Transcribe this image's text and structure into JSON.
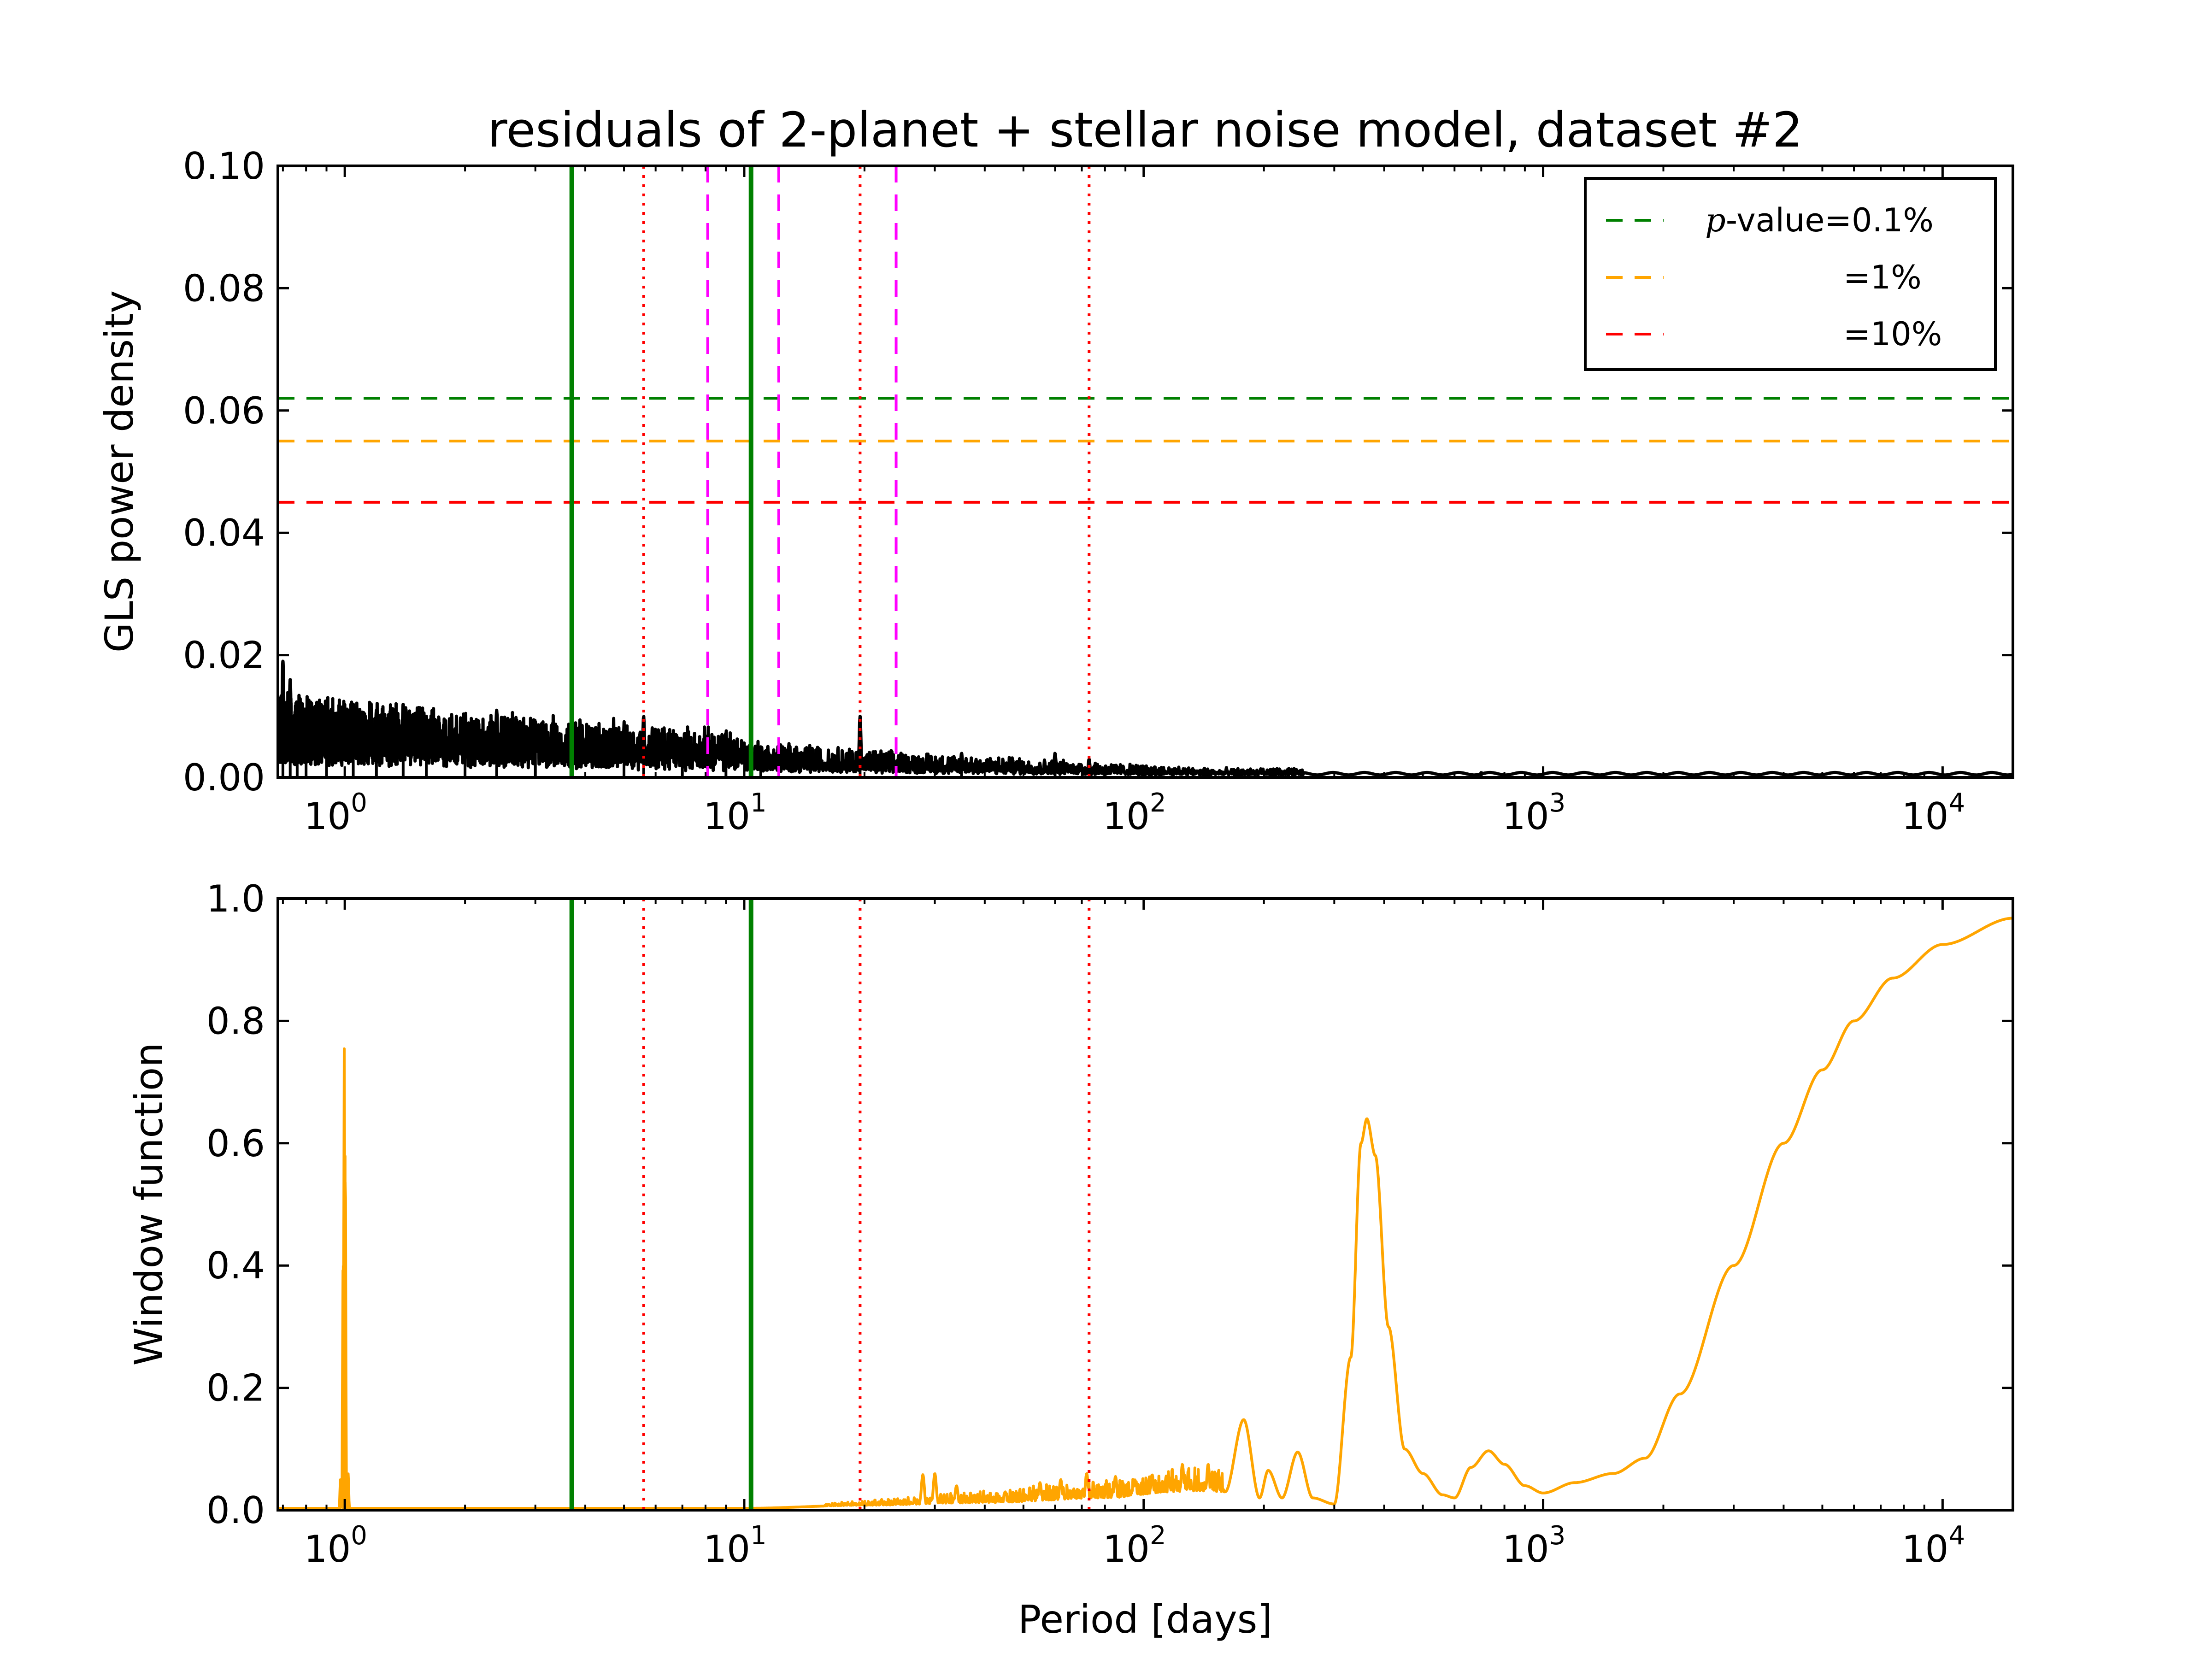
{
  "chart_data": [
    {
      "type": "line",
      "title": "residuals of 2-planet + stellar noise model, dataset #2",
      "xlabel": "",
      "ylabel": "GLS power density",
      "xscale": "log",
      "xlim": [
        0.68,
        15000
      ],
      "ylim": [
        0,
        0.1
      ],
      "yticks": [
        0.0,
        0.02,
        0.04,
        0.06,
        0.08,
        0.1
      ],
      "ytick_labels": [
        "0.00",
        "0.02",
        "0.04",
        "0.06",
        "0.08",
        "0.10"
      ],
      "xticks": [
        1,
        10,
        100,
        1000,
        10000
      ],
      "xtick_labels": [
        {
          "base": "10",
          "exp": "0"
        },
        {
          "base": "10",
          "exp": "1"
        },
        {
          "base": "10",
          "exp": "2"
        },
        {
          "base": "10",
          "exp": "3"
        },
        {
          "base": "10",
          "exp": "4"
        }
      ],
      "series_color": "#000000",
      "hlines": [
        {
          "y": 0.062,
          "color": "#008000",
          "style": "dashed"
        },
        {
          "y": 0.055,
          "color": "#ffa500",
          "style": "dashed"
        },
        {
          "y": 0.045,
          "color": "#ff0000",
          "style": "dashed"
        }
      ],
      "vlines": [
        {
          "x": 3.7,
          "color": "#008000",
          "style": "solid"
        },
        {
          "x": 10.4,
          "color": "#008000",
          "style": "solid"
        },
        {
          "x": 5.6,
          "color": "#ff0000",
          "style": "dotted"
        },
        {
          "x": 19.5,
          "color": "#ff0000",
          "style": "dotted"
        },
        {
          "x": 73,
          "color": "#ff0000",
          "style": "dotted"
        },
        {
          "x": 8.1,
          "color": "#ff00ff",
          "style": "dashed"
        },
        {
          "x": 12.2,
          "color": "#ff00ff",
          "style": "dashed"
        },
        {
          "x": 24,
          "color": "#ff00ff",
          "style": "dashed"
        }
      ],
      "peaks": [
        {
          "x": 0.7,
          "y": 0.019
        },
        {
          "x": 0.73,
          "y": 0.016
        },
        {
          "x": 0.76,
          "y": 0.012
        },
        {
          "x": 0.8,
          "y": 0.011
        },
        {
          "x": 0.9,
          "y": 0.01
        },
        {
          "x": 1.05,
          "y": 0.012
        },
        {
          "x": 1.2,
          "y": 0.011
        },
        {
          "x": 1.4,
          "y": 0.012
        },
        {
          "x": 1.6,
          "y": 0.01
        },
        {
          "x": 2.0,
          "y": 0.01
        },
        {
          "x": 2.4,
          "y": 0.011
        },
        {
          "x": 3.0,
          "y": 0.008
        },
        {
          "x": 5.0,
          "y": 0.008
        },
        {
          "x": 5.6,
          "y": 0.01
        },
        {
          "x": 7.0,
          "y": 0.006
        },
        {
          "x": 9.0,
          "y": 0.006
        },
        {
          "x": 11,
          "y": 0.005
        },
        {
          "x": 19.5,
          "y": 0.01
        },
        {
          "x": 35,
          "y": 0.004
        },
        {
          "x": 60,
          "y": 0.004
        },
        {
          "x": 73,
          "y": 0.003
        },
        {
          "x": 700,
          "y": 0.0008
        }
      ],
      "legend": {
        "position": "upper-right",
        "entries": [
          {
            "label_math": "p",
            "label": "-value=0.1%",
            "color": "#008000"
          },
          {
            "label": "=1%",
            "color": "#ffa500"
          },
          {
            "label": "=10%",
            "color": "#ff0000"
          }
        ]
      }
    },
    {
      "type": "line",
      "title": "",
      "xlabel": "Period [days]",
      "ylabel": "Window function",
      "xscale": "log",
      "xlim": [
        0.68,
        15000
      ],
      "ylim": [
        0,
        1.0
      ],
      "yticks": [
        0.0,
        0.2,
        0.4,
        0.6,
        0.8,
        1.0
      ],
      "ytick_labels": [
        "0.0",
        "0.2",
        "0.4",
        "0.6",
        "0.8",
        "1.0"
      ],
      "xticks": [
        1,
        10,
        100,
        1000,
        10000
      ],
      "xtick_labels": [
        {
          "base": "10",
          "exp": "0"
        },
        {
          "base": "10",
          "exp": "1"
        },
        {
          "base": "10",
          "exp": "2"
        },
        {
          "base": "10",
          "exp": "3"
        },
        {
          "base": "10",
          "exp": "4"
        }
      ],
      "series_color": "#ffa500",
      "vlines": [
        {
          "x": 3.7,
          "color": "#008000",
          "style": "solid"
        },
        {
          "x": 10.4,
          "color": "#008000",
          "style": "solid"
        },
        {
          "x": 5.6,
          "color": "#ff0000",
          "style": "dotted"
        },
        {
          "x": 19.5,
          "color": "#ff0000",
          "style": "dotted"
        },
        {
          "x": 73,
          "color": "#ff0000",
          "style": "dotted"
        }
      ],
      "peaks": [
        {
          "x": 0.997,
          "y": 0.755
        },
        {
          "x": 1.003,
          "y": 0.58
        },
        {
          "x": 0.99,
          "y": 0.4
        },
        {
          "x": 1.02,
          "y": 0.06
        },
        {
          "x": 0.975,
          "y": 0.05
        }
      ],
      "curve": [
        [
          0.68,
          0.003
        ],
        [
          1.2,
          0.003
        ],
        [
          10,
          0.003
        ],
        [
          20,
          0.008
        ],
        [
          40,
          0.012
        ],
        [
          80,
          0.02
        ],
        [
          120,
          0.03
        ],
        [
          160,
          0.03
        ],
        [
          178,
          0.148
        ],
        [
          195,
          0.02
        ],
        [
          205,
          0.065
        ],
        [
          222,
          0.02
        ],
        [
          243,
          0.095
        ],
        [
          265,
          0.02
        ],
        [
          300,
          0.01
        ],
        [
          330,
          0.25
        ],
        [
          350,
          0.6
        ],
        [
          362,
          0.64
        ],
        [
          380,
          0.58
        ],
        [
          410,
          0.3
        ],
        [
          450,
          0.1
        ],
        [
          500,
          0.06
        ],
        [
          560,
          0.025
        ],
        [
          600,
          0.02
        ],
        [
          660,
          0.07
        ],
        [
          730,
          0.097
        ],
        [
          800,
          0.075
        ],
        [
          900,
          0.04
        ],
        [
          1000,
          0.028
        ],
        [
          1200,
          0.045
        ],
        [
          1500,
          0.06
        ],
        [
          1800,
          0.085
        ],
        [
          2200,
          0.19
        ],
        [
          3000,
          0.4
        ],
        [
          4000,
          0.6
        ],
        [
          5000,
          0.72
        ],
        [
          6000,
          0.8
        ],
        [
          7500,
          0.87
        ],
        [
          10000,
          0.925
        ],
        [
          15000,
          0.968
        ]
      ],
      "wiggles": [
        {
          "x": 28,
          "y": 0.058
        },
        {
          "x": 30,
          "y": 0.06
        },
        {
          "x": 34,
          "y": 0.04
        },
        {
          "x": 45,
          "y": 0.03
        },
        {
          "x": 55,
          "y": 0.045
        },
        {
          "x": 62,
          "y": 0.05
        },
        {
          "x": 72,
          "y": 0.06
        },
        {
          "x": 85,
          "y": 0.055
        },
        {
          "x": 95,
          "y": 0.05
        },
        {
          "x": 105,
          "y": 0.058
        },
        {
          "x": 125,
          "y": 0.075
        },
        {
          "x": 145,
          "y": 0.075
        }
      ]
    }
  ]
}
